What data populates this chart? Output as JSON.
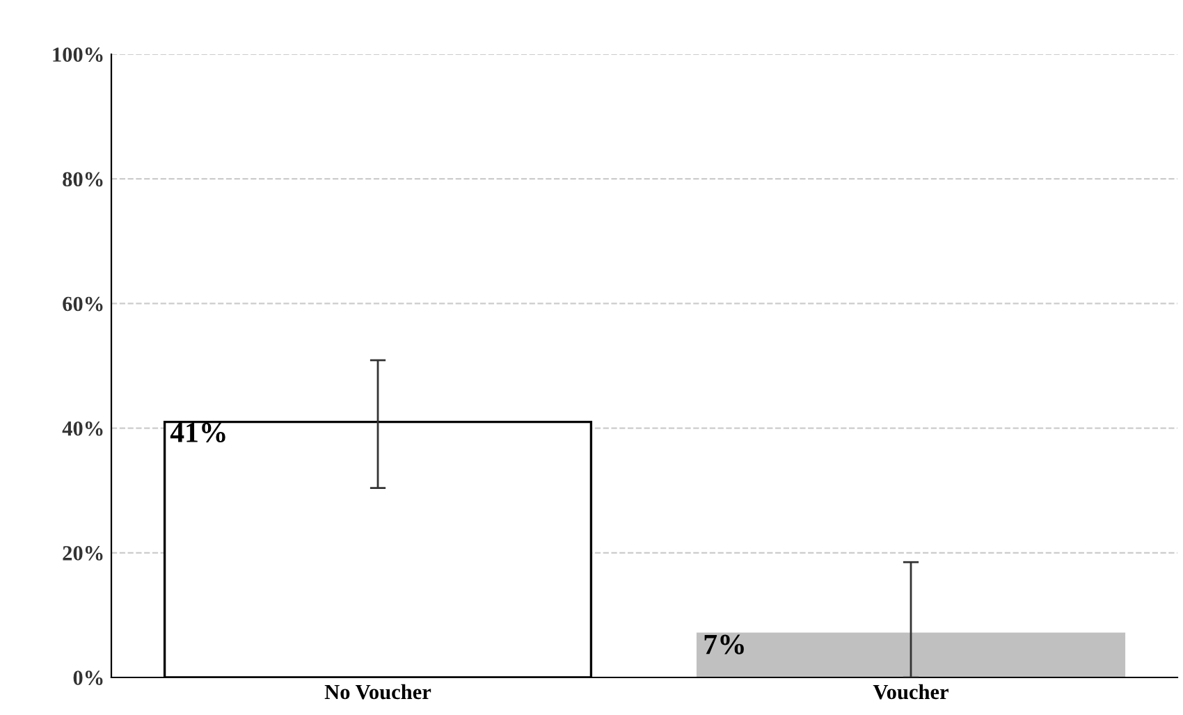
{
  "chart_data": {
    "type": "bar",
    "categories": [
      "No Voucher",
      "Voucher"
    ],
    "values": [
      41,
      7
    ],
    "colors": [
      "#ffffff",
      "#c0c0c0"
    ],
    "errors": [
      [
        30.4,
        50.9
      ],
      [
        0,
        18.5
      ]
    ],
    "value_labels": [
      "41%",
      "7%"
    ],
    "ylim": [
      0,
      100
    ],
    "yticks": [
      {
        "value": 0,
        "label": "0%"
      },
      {
        "value": 20,
        "label": "20%"
      },
      {
        "value": 40,
        "label": "40%"
      },
      {
        "value": 60,
        "label": "60%"
      },
      {
        "value": 80,
        "label": "80%"
      },
      {
        "value": 100,
        "label": "100%"
      }
    ],
    "grid": "y"
  }
}
